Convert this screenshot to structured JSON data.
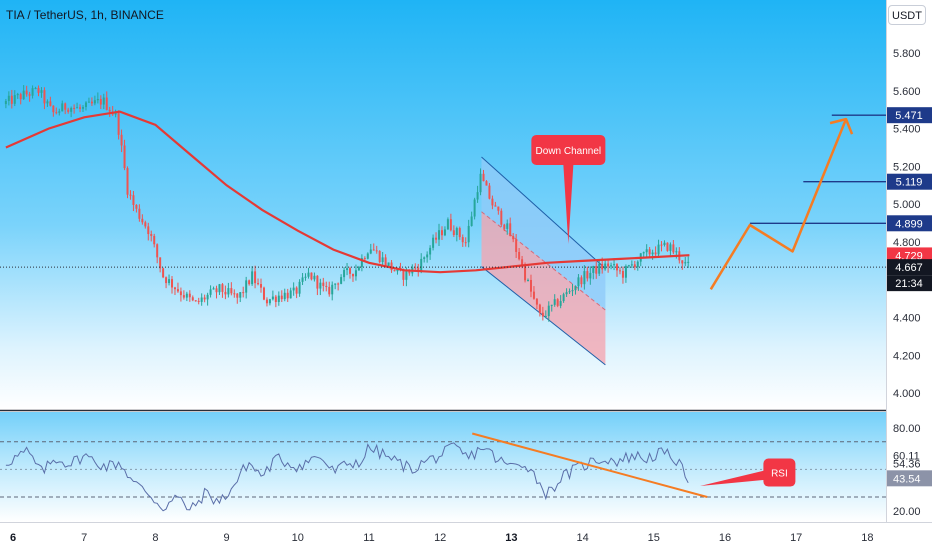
{
  "header": {
    "title": "TIA / TetherUS, 1h, BINANCE",
    "currency": "USDT"
  },
  "colors": {
    "up": "#26a69a",
    "down": "#ef5350",
    "ma": "#e53935",
    "arrow": "#f57c23",
    "callout": "#f23645",
    "level_line": "#1e3a8a",
    "channel_upper": "#90caf9",
    "channel_lower": "#f4a6b1",
    "bg_top": "#22b5f6",
    "bg_bottom": "#ffffff"
  },
  "chart_data": [
    {
      "type": "candlestick",
      "title": "TIA / TetherUS, 1h, BINANCE",
      "currency": "USDT",
      "x_ticks": [
        {
          "label": "6",
          "day": 6,
          "bold": true
        },
        {
          "label": "7",
          "day": 7
        },
        {
          "label": "8",
          "day": 8
        },
        {
          "label": "9",
          "day": 9
        },
        {
          "label": "10",
          "day": 10
        },
        {
          "label": "11",
          "day": 11
        },
        {
          "label": "12",
          "day": 12
        },
        {
          "label": "13",
          "day": 13,
          "bold": true
        },
        {
          "label": "14",
          "day": 14
        },
        {
          "label": "15",
          "day": 15
        },
        {
          "label": "16",
          "day": 16
        },
        {
          "label": "17",
          "day": 17
        },
        {
          "label": "18",
          "day": 18
        }
      ],
      "y_ticks": [
        "4.000",
        "4.200",
        "4.400",
        "4.600",
        "4.800",
        "5.000",
        "5.200",
        "5.400",
        "5.600",
        "5.800"
      ],
      "ylim": [
        3.95,
        5.95
      ],
      "xlim": [
        5.9,
        18.3
      ],
      "price_points": [
        [
          5.9,
          5.53
        ],
        [
          6.2,
          5.58
        ],
        [
          6.4,
          5.6
        ],
        [
          6.6,
          5.48
        ],
        [
          6.8,
          5.52
        ],
        [
          7.0,
          5.5
        ],
        [
          7.3,
          5.55
        ],
        [
          7.5,
          5.46
        ],
        [
          7.65,
          5.08
        ],
        [
          7.75,
          4.98
        ],
        [
          7.95,
          4.86
        ],
        [
          8.15,
          4.62
        ],
        [
          8.35,
          4.55
        ],
        [
          8.6,
          4.47
        ],
        [
          8.75,
          4.51
        ],
        [
          8.95,
          4.55
        ],
        [
          9.2,
          4.5
        ],
        [
          9.4,
          4.62
        ],
        [
          9.6,
          4.49
        ],
        [
          9.8,
          4.52
        ],
        [
          10.0,
          4.53
        ],
        [
          10.2,
          4.63
        ],
        [
          10.45,
          4.53
        ],
        [
          10.65,
          4.62
        ],
        [
          10.85,
          4.65
        ],
        [
          11.05,
          4.78
        ],
        [
          11.3,
          4.68
        ],
        [
          11.5,
          4.62
        ],
        [
          11.75,
          4.68
        ],
        [
          11.95,
          4.8
        ],
        [
          12.15,
          4.9
        ],
        [
          12.4,
          4.8
        ],
        [
          12.6,
          5.15
        ],
        [
          12.8,
          4.98
        ],
        [
          13.0,
          4.86
        ],
        [
          13.15,
          4.72
        ],
        [
          13.3,
          4.55
        ],
        [
          13.45,
          4.4
        ],
        [
          13.6,
          4.45
        ],
        [
          13.8,
          4.52
        ],
        [
          14.0,
          4.6
        ],
        [
          14.2,
          4.65
        ],
        [
          14.4,
          4.68
        ],
        [
          14.6,
          4.63
        ],
        [
          14.8,
          4.7
        ],
        [
          15.0,
          4.75
        ],
        [
          15.25,
          4.78
        ],
        [
          15.45,
          4.7
        ],
        [
          15.5,
          4.67
        ]
      ],
      "moving_average": [
        [
          5.9,
          5.3
        ],
        [
          6.5,
          5.4
        ],
        [
          7.0,
          5.46
        ],
        [
          7.5,
          5.49
        ],
        [
          8.0,
          5.42
        ],
        [
          8.5,
          5.26
        ],
        [
          9.0,
          5.1
        ],
        [
          9.5,
          4.97
        ],
        [
          10.0,
          4.86
        ],
        [
          10.5,
          4.76
        ],
        [
          11.0,
          4.69
        ],
        [
          11.5,
          4.65
        ],
        [
          12.0,
          4.64
        ],
        [
          12.5,
          4.65
        ],
        [
          13.0,
          4.67
        ],
        [
          13.5,
          4.69
        ],
        [
          14.0,
          4.7
        ],
        [
          14.5,
          4.71
        ],
        [
          15.0,
          4.72
        ],
        [
          15.5,
          4.73
        ]
      ],
      "price_labels": [
        {
          "text": "5.471",
          "value": 5.471,
          "style": "level"
        },
        {
          "text": "5.119",
          "value": 5.119,
          "style": "level"
        },
        {
          "text": "4.899",
          "value": 4.899,
          "style": "level"
        },
        {
          "text": "4.729",
          "value": 4.729,
          "style": "ma"
        },
        {
          "text": "4.667",
          "value": 4.667,
          "style": "last"
        },
        {
          "text": "21:34",
          "style": "countdown"
        }
      ],
      "level_lines": [
        {
          "value": 5.471,
          "x_from": 17.5
        },
        {
          "value": 5.119,
          "x_from": 17.1
        },
        {
          "value": 4.899,
          "x_from": 16.35
        }
      ],
      "channel": {
        "upper": [
          [
            12.58,
            5.25
          ],
          [
            14.32,
            4.66
          ],
          [
            14.32,
            4.44
          ],
          [
            12.58,
            4.96
          ]
        ],
        "lower": [
          [
            12.58,
            4.96
          ],
          [
            14.32,
            4.44
          ],
          [
            14.32,
            4.15
          ],
          [
            12.58,
            4.67
          ]
        ]
      },
      "projection_arrow": [
        [
          15.8,
          4.55
        ],
        [
          16.35,
          4.89
        ],
        [
          16.95,
          4.75
        ],
        [
          17.7,
          5.45
        ]
      ],
      "annotations": [
        {
          "text": "Down Channel",
          "kind": "callout",
          "x": 13.8,
          "value": 5.25,
          "pointer_value": 4.79
        },
        {
          "text": "RSI",
          "kind": "callout",
          "x": 16.75,
          "rsi": 43
        }
      ]
    },
    {
      "type": "line",
      "series": [
        {
          "name": "RSI"
        }
      ],
      "right_labels": [
        "80.00",
        "60.11",
        "54.36",
        "43.54",
        "20.00"
      ],
      "ylim": [
        14,
        82
      ],
      "band": [
        30,
        70
      ],
      "midline": 50,
      "rsi_points": [
        [
          5.9,
          55
        ],
        [
          6.2,
          63
        ],
        [
          6.4,
          48
        ],
        [
          6.6,
          58
        ],
        [
          6.8,
          54
        ],
        [
          7.0,
          60
        ],
        [
          7.3,
          52
        ],
        [
          7.5,
          55
        ],
        [
          7.7,
          40
        ],
        [
          7.9,
          33
        ],
        [
          8.1,
          22
        ],
        [
          8.3,
          30
        ],
        [
          8.5,
          20
        ],
        [
          8.7,
          33
        ],
        [
          8.9,
          26
        ],
        [
          9.1,
          38
        ],
        [
          9.3,
          55
        ],
        [
          9.5,
          45
        ],
        [
          9.7,
          58
        ],
        [
          10.0,
          52
        ],
        [
          10.3,
          60
        ],
        [
          10.5,
          48
        ],
        [
          10.7,
          54
        ],
        [
          10.9,
          56
        ],
        [
          11.0,
          66
        ],
        [
          11.3,
          58
        ],
        [
          11.6,
          50
        ],
        [
          11.8,
          56
        ],
        [
          12.0,
          60
        ],
        [
          12.2,
          66
        ],
        [
          12.4,
          58
        ],
        [
          12.6,
          67
        ],
        [
          12.8,
          57
        ],
        [
          13.0,
          52
        ],
        [
          13.2,
          55
        ],
        [
          13.4,
          40
        ],
        [
          13.5,
          32
        ],
        [
          13.7,
          44
        ],
        [
          13.9,
          50
        ],
        [
          14.1,
          55
        ],
        [
          14.3,
          58
        ],
        [
          14.5,
          56
        ],
        [
          14.7,
          60
        ],
        [
          14.9,
          58
        ],
        [
          15.1,
          62
        ],
        [
          15.3,
          58
        ],
        [
          15.45,
          45
        ],
        [
          15.5,
          43.5
        ]
      ],
      "trend_line": [
        [
          12.45,
          76
        ],
        [
          15.75,
          30
        ]
      ],
      "rsi_callout": {
        "text": "RSI",
        "x": 16.75,
        "value": 47,
        "pointer": [
          15.65,
          38
        ]
      }
    }
  ]
}
